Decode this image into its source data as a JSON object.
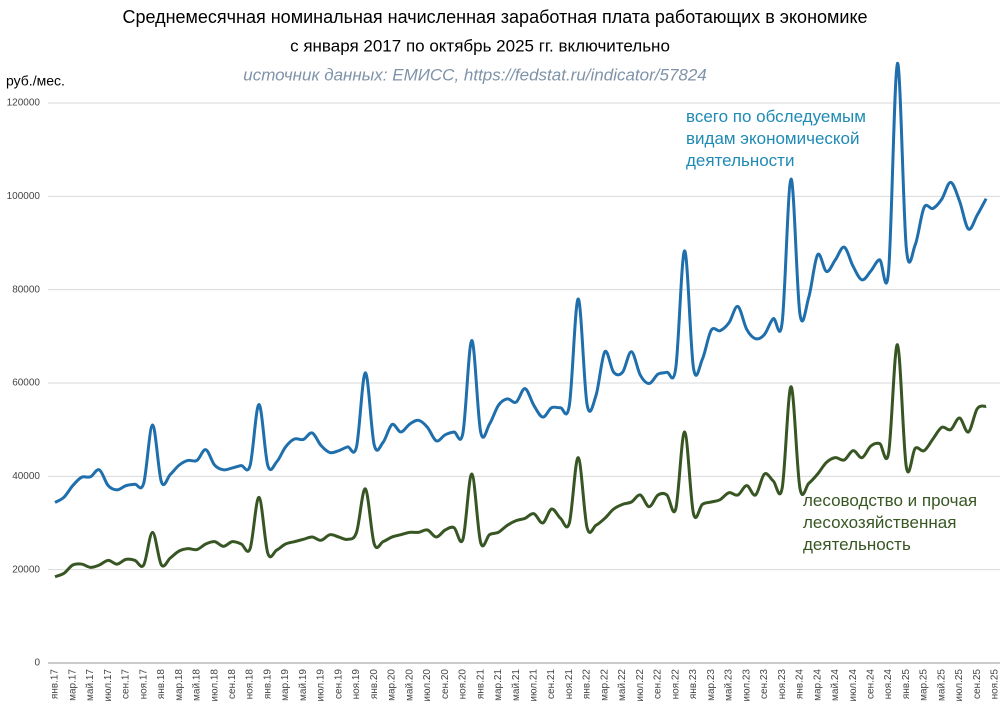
{
  "chart_data": {
    "type": "line",
    "title": "Среднемесячная номинальная начисленная заработная плата работающих в экономике",
    "subtitle": "с января 2017 по октябрь 2025 гг. включительно",
    "source": "источник данных: ЕМИСС, https://fedstat.ru/indicator/57824",
    "y_axis_label": "руб./мес.",
    "categories": [
      "янв.17",
      null,
      "мар.17",
      null,
      "май.17",
      null,
      "июл.17",
      null,
      "сен.17",
      null,
      "ноя.17",
      null,
      "янв.18",
      null,
      "мар.18",
      null,
      "май.18",
      null,
      "июл.18",
      null,
      "сен.18",
      null,
      "ноя.18",
      null,
      "янв.19",
      null,
      "мар.19",
      null,
      "май.19",
      null,
      "июл.19",
      null,
      "сен.19",
      null,
      "ноя.19",
      null,
      "янв.20",
      null,
      "мар.20",
      null,
      "май.20",
      null,
      "июл.20",
      null,
      "сен.20",
      null,
      "ноя.20",
      null,
      "янв.21",
      null,
      "мар.21",
      null,
      "май.21",
      null,
      "июл.21",
      null,
      "сен.21",
      null,
      "ноя.21",
      null,
      "янв.22",
      null,
      "мар.22",
      null,
      "май.22",
      null,
      "июл.22",
      null,
      "сен.22",
      null,
      "ноя.22",
      null,
      "янв.23",
      null,
      "мар.23",
      null,
      "май.23",
      null,
      "июл.23",
      null,
      "сен.23",
      null,
      "ноя.23",
      null,
      "янв.24",
      null,
      "мар.24",
      null,
      "май.24",
      null,
      "июл.24",
      null,
      "сен.24",
      null,
      "ноя.24",
      null,
      "янв.25",
      null,
      "мар.25",
      null,
      "май.25",
      null,
      "июл.25",
      null,
      "сен.25",
      null,
      "ноя.25"
    ],
    "series": [
      {
        "name": "всего по обследуемым видам экономической деятельности",
        "color": "#1f6fad",
        "values": [
          34400,
          35500,
          38000,
          39800,
          39900,
          41400,
          38000,
          37100,
          38000,
          38300,
          38500,
          51000,
          38800,
          40400,
          42400,
          43400,
          43400,
          45700,
          42400,
          41400,
          41800,
          42300,
          42300,
          55400,
          42300,
          43100,
          46300,
          48000,
          47900,
          49300,
          46600,
          45100,
          45500,
          46300,
          46300,
          62200,
          46700,
          47300,
          51100,
          49500,
          51200,
          52000,
          50500,
          47600,
          48900,
          49500,
          49300,
          69100,
          49500,
          51200,
          55200,
          56600,
          55900,
          58800,
          55200,
          52700,
          54700,
          54700,
          55200,
          78000,
          55400,
          57300,
          66700,
          62300,
          62300,
          66700,
          61700,
          59900,
          61900,
          62300,
          63200,
          88300,
          63200,
          65100,
          71300,
          71200,
          72900,
          76400,
          71500,
          69500,
          70400,
          73800,
          73000,
          103700,
          74800,
          78400,
          87500,
          83900,
          86400,
          89100,
          85000,
          82100,
          84000,
          86400,
          84000,
          128500,
          88900,
          89600,
          97600,
          97400,
          99400,
          103000,
          99000,
          93000,
          96000,
          99500,
          null
        ]
      },
      {
        "name": "лесоводство и прочая лесохозяйственная деятельность",
        "color": "#375623",
        "values": [
          18500,
          19200,
          21000,
          21200,
          20500,
          21000,
          22000,
          21200,
          22200,
          22000,
          21000,
          28000,
          21000,
          22500,
          24000,
          24500,
          24300,
          25500,
          26000,
          25000,
          26000,
          25500,
          24500,
          35500,
          23500,
          24200,
          25500,
          26000,
          26500,
          27000,
          26300,
          27500,
          27000,
          26500,
          28000,
          37300,
          25500,
          26000,
          27000,
          27500,
          28000,
          28000,
          28500,
          27000,
          28500,
          29000,
          26500,
          40500,
          25800,
          27500,
          28000,
          29500,
          30500,
          31000,
          32000,
          30000,
          33000,
          31000,
          30000,
          44000,
          29000,
          29500,
          31000,
          33000,
          34000,
          34500,
          36000,
          33500,
          36000,
          36000,
          33000,
          49500,
          32000,
          34000,
          34500,
          35000,
          36500,
          36000,
          38000,
          36000,
          40500,
          39000,
          37500,
          59200,
          37500,
          38500,
          40500,
          43000,
          44000,
          43500,
          45500,
          44000,
          46500,
          47000,
          45000,
          68200,
          42000,
          46000,
          45500,
          48000,
          50500,
          50000,
          52500,
          49500,
          54500,
          55000,
          null
        ]
      }
    ],
    "ylim": [
      0,
      120000
    ],
    "yticks": [
      0,
      20000,
      40000,
      60000,
      80000,
      100000,
      120000
    ],
    "grid": true
  }
}
